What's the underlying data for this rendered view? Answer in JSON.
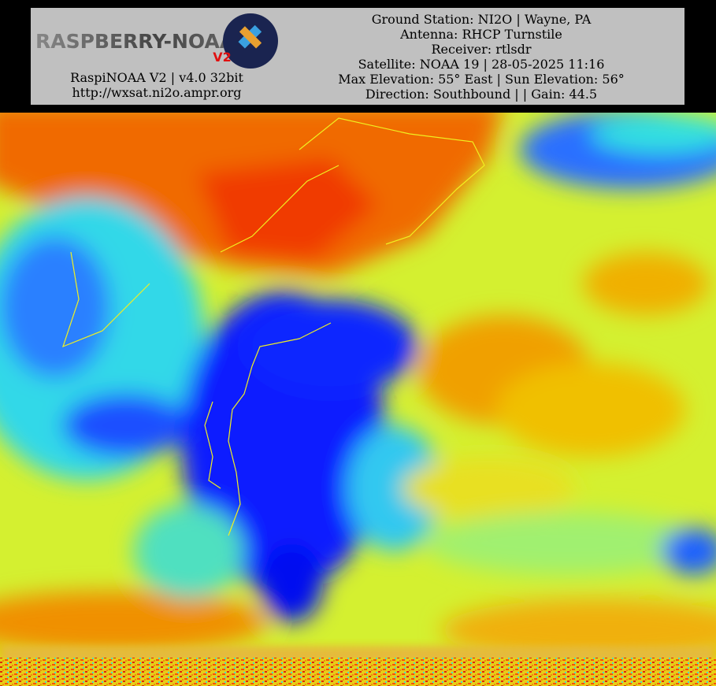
{
  "header": {
    "logo": {
      "title": "RASPBERRY-NOAA",
      "version": "V2"
    },
    "left": [
      "RaspiNOAA V2 | v4.0 32bit",
      "http://wxsat.ni2o.ampr.org"
    ],
    "right": [
      "Ground Station: NI2O | Wayne, PA",
      "Antenna: RHCP Turnstile",
      "Receiver: rtlsdr",
      "Satellite: NOAA 19 | 28-05-2025 11:16",
      "Max Elevation: 55° East | Sun Elevation: 56°",
      "Direction: Southbound | | Gain: 44.5"
    ]
  }
}
